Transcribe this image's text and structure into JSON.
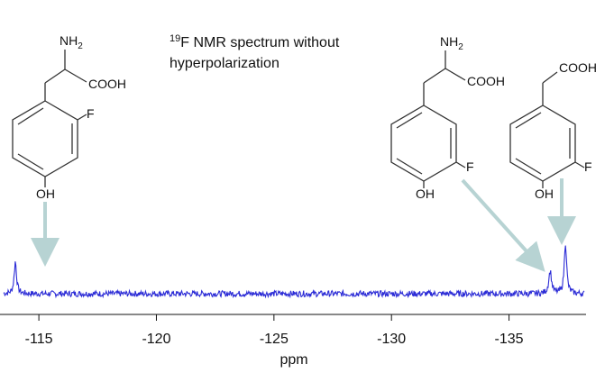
{
  "chart_data": {
    "type": "line",
    "title_sup": "19",
    "title_line1": "F NMR spectrum without",
    "title_line2": "hyperpolarization",
    "xlabel": "ppm",
    "xlim": [
      -113.5,
      -138.2
    ],
    "ylim": [
      -0.15,
      1.6
    ],
    "x_reversed": true,
    "xticks": [
      -115,
      -120,
      -125,
      -130,
      -135
    ],
    "xtick_labels": [
      "-115",
      "-120",
      "-125",
      "-130",
      "-135"
    ],
    "peaks": [
      {
        "x": -114.0,
        "height": 0.85,
        "width": 0.06
      },
      {
        "x": -136.75,
        "height": 0.6,
        "width": 0.07
      },
      {
        "x": -137.4,
        "height": 1.35,
        "width": 0.06
      }
    ],
    "baseline_noise": 0.08,
    "line_color": "#2b2bd6",
    "arrow_color": "#b7d3d3"
  },
  "molecules": [
    {
      "amine": "NH",
      "amine_sub": "2",
      "acid": "COOH",
      "halogen": "F",
      "hydroxyl": "OH"
    },
    {
      "amine": "NH",
      "amine_sub": "2",
      "acid": "COOH",
      "halogen": "F",
      "hydroxyl": "OH"
    },
    {
      "acid": "COOH",
      "halogen": "F",
      "hydroxyl": "OH"
    }
  ]
}
